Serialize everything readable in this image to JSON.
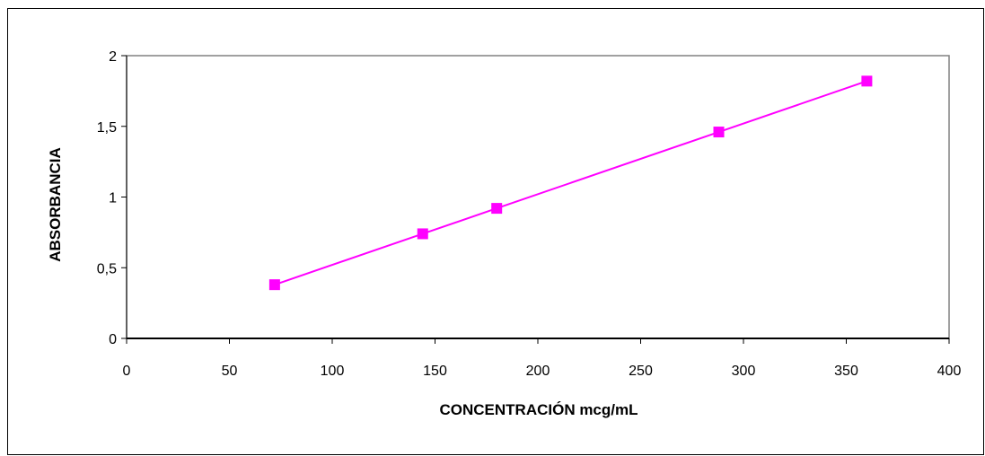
{
  "chart_data": {
    "type": "scatter",
    "title": "",
    "xlabel": "CONCENTRACIÓN mcg/mL",
    "ylabel": "ABSORBANCIA",
    "xlim": [
      0,
      400
    ],
    "ylim": [
      0,
      2
    ],
    "x_ticks": [
      0,
      50,
      100,
      150,
      200,
      250,
      300,
      350,
      400
    ],
    "y_ticks": [
      0,
      0.5,
      1,
      1.5,
      2
    ],
    "x_tick_labels": [
      "0",
      "50",
      "100",
      "150",
      "200",
      "250",
      "300",
      "350",
      "400"
    ],
    "y_tick_labels": [
      "0",
      "0,5",
      "1",
      "1,5",
      "2"
    ],
    "series": [
      {
        "x": [
          72,
          144,
          180,
          288,
          360
        ],
        "y": [
          0.38,
          0.74,
          0.92,
          1.46,
          1.82
        ],
        "marker": "square",
        "color": "#FF00FF",
        "line": true
      }
    ],
    "grid": false,
    "legend": "none",
    "plot_border_color": "#808080",
    "axis_color": "#000000"
  }
}
